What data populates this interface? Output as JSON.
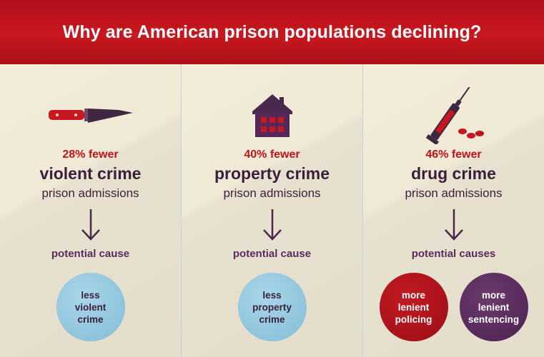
{
  "title": "Why are American prison populations declining?",
  "panels": [
    {
      "icon": "knife-icon",
      "stat": "28% fewer",
      "crime": "violent crime",
      "sub": "prison admissions",
      "cause_label": "potential cause",
      "causes": [
        {
          "lines": [
            "less",
            "violent",
            "crime"
          ],
          "color": "#8ec4dc"
        }
      ]
    },
    {
      "icon": "house-icon",
      "stat": "40% fewer",
      "crime": "property crime",
      "sub": "prison admissions",
      "cause_label": "potential cause",
      "causes": [
        {
          "lines": [
            "less",
            "property",
            "crime"
          ],
          "color": "#8ec4dc"
        }
      ]
    },
    {
      "icon": "syringe-pills-icon",
      "stat": "46% fewer",
      "crime": "drug crime",
      "sub": "prison admissions",
      "cause_label": "potential causes",
      "causes": [
        {
          "lines": [
            "more",
            "lenient",
            "policing"
          ],
          "color": "#a5111a"
        },
        {
          "lines": [
            "more",
            "lenient",
            "sentencing"
          ],
          "color": "#55285a"
        }
      ]
    }
  ],
  "colors": {
    "banner": "#c8171f",
    "accent_red": "#c0121c",
    "dark_purple": "#3a1f3a",
    "cause_blue": "#8ec4dc",
    "cause_red": "#a5111a",
    "cause_purple": "#55285a"
  }
}
